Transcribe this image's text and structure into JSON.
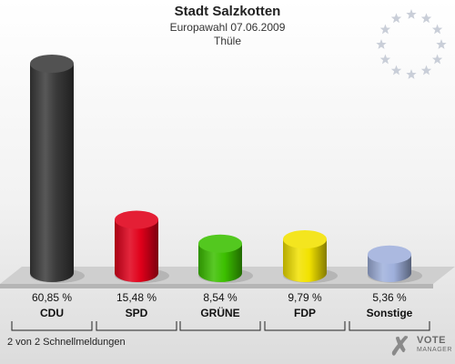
{
  "header": {
    "title": "Stadt Salzkotten",
    "subtitle": "Europawahl 07.06.2009",
    "location": "Thüle"
  },
  "chart_data": {
    "type": "bar",
    "categories": [
      "CDU",
      "SPD",
      "GRÜNE",
      "FDP",
      "Sonstige"
    ],
    "values": [
      60.85,
      15.48,
      8.54,
      9.79,
      5.36
    ],
    "value_labels": [
      "60,85 %",
      "15,48 %",
      "8,54 %",
      "9,79 %",
      "5,36 %"
    ],
    "colors": [
      "#3a3a3a",
      "#e0001a",
      "#3cc000",
      "#f2e200",
      "#9fb0dc"
    ],
    "title": "Stadt Salzkotten",
    "xlabel": "",
    "ylabel": "",
    "ylim": [
      0,
      62
    ],
    "grid": false,
    "legend": "none"
  },
  "footer": {
    "status": "2 von 2 Schnellmeldungen",
    "logo_line1": "VOTE",
    "logo_line2": "MANAGER",
    "logo_icon": "checkmark-x-icon"
  },
  "decoration": {
    "eu_stars_icon": "eu-stars-icon",
    "star_color": "#c9ced8"
  }
}
